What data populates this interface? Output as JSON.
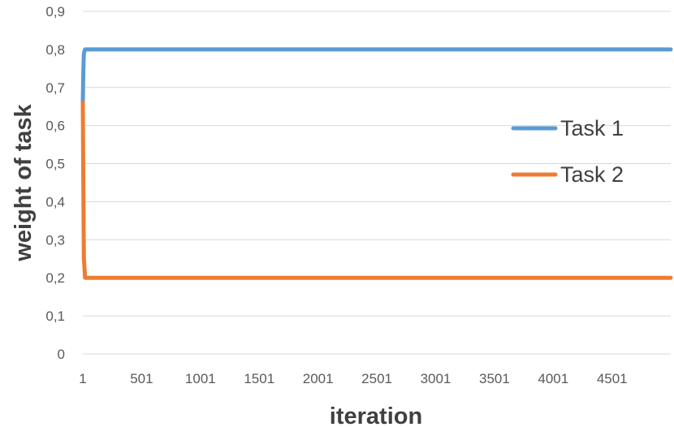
{
  "chart_data": {
    "type": "line",
    "xlabel": "iteration",
    "ylabel": "weight of task",
    "x_ticks": [
      "1",
      "501",
      "1001",
      "1501",
      "2001",
      "2501",
      "3001",
      "3501",
      "4001",
      "4501"
    ],
    "y_ticks": [
      "0",
      "0,1",
      "0,2",
      "0,3",
      "0,4",
      "0,5",
      "0,6",
      "0,7",
      "0,8",
      "0,9"
    ],
    "xlim": [
      1,
      5000
    ],
    "ylim": [
      0,
      0.9
    ],
    "grid": "horizontal",
    "legend_position": "right",
    "series": [
      {
        "name": "Task 1",
        "color": "#5B9BD5",
        "x": [
          1,
          5,
          10,
          20,
          30,
          40,
          50,
          100,
          500,
          1000,
          2000,
          3000,
          4000,
          5000
        ],
        "y": [
          0.66,
          0.74,
          0.79,
          0.8,
          0.8,
          0.8,
          0.8,
          0.8,
          0.8,
          0.8,
          0.8,
          0.8,
          0.8,
          0.8
        ]
      },
      {
        "name": "Task 2",
        "color": "#ED7D31",
        "x": [
          1,
          5,
          10,
          20,
          30,
          40,
          50,
          100,
          500,
          1000,
          2000,
          3000,
          4000,
          5000
        ],
        "y": [
          0.66,
          0.45,
          0.25,
          0.2,
          0.2,
          0.2,
          0.2,
          0.2,
          0.2,
          0.2,
          0.2,
          0.2,
          0.2,
          0.2
        ]
      }
    ]
  }
}
